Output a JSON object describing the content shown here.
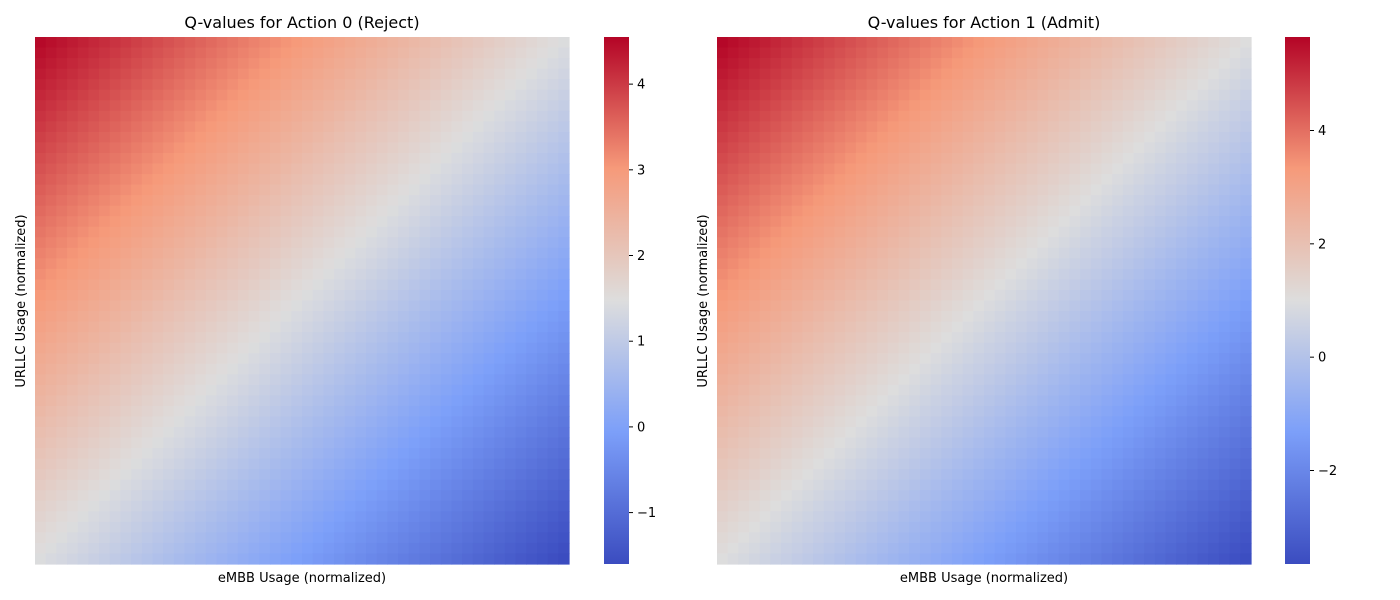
{
  "chart_data": [
    {
      "type": "heatmap",
      "title": "Q-values for Action 0 (Reject)",
      "xlabel": "eMBB Usage (normalized)",
      "ylabel": "URLLC Usage (normalized)",
      "x_ticks": "hidden",
      "y_ticks": "hidden",
      "grid_size": [
        50,
        50
      ],
      "z_model": "linear gradient, highest at top-left (low eMBB, low URLLC), lowest at bottom-right",
      "z_corners": {
        "top_left": 4.5,
        "top_right": 1.45,
        "bottom_left": 1.45,
        "bottom_right": -1.6
      },
      "colormap": "coolwarm",
      "colorbar": {
        "range": [
          -1.6,
          4.55
        ],
        "ticks": [
          -1,
          0,
          1,
          2,
          3,
          4
        ],
        "tick_labels": [
          "−1",
          "0",
          "1",
          "2",
          "3",
          "4"
        ]
      }
    },
    {
      "type": "heatmap",
      "title": "Q-values for Action 1 (Admit)",
      "xlabel": "eMBB Usage (normalized)",
      "ylabel": "URLLC Usage (normalized)",
      "x_ticks": "hidden",
      "y_ticks": "hidden",
      "grid_size": [
        50,
        50
      ],
      "z_model": "linear gradient, highest at top-left (low eMBB, low URLLC), lowest at bottom-right",
      "z_corners": {
        "top_left": 5.6,
        "top_right": 1.0,
        "bottom_left": 1.0,
        "bottom_right": -3.6
      },
      "colormap": "coolwarm",
      "colorbar": {
        "range": [
          -3.65,
          5.65
        ],
        "ticks": [
          -2,
          0,
          2,
          4
        ],
        "tick_labels": [
          "−2",
          "0",
          "2",
          "4"
        ]
      }
    }
  ]
}
